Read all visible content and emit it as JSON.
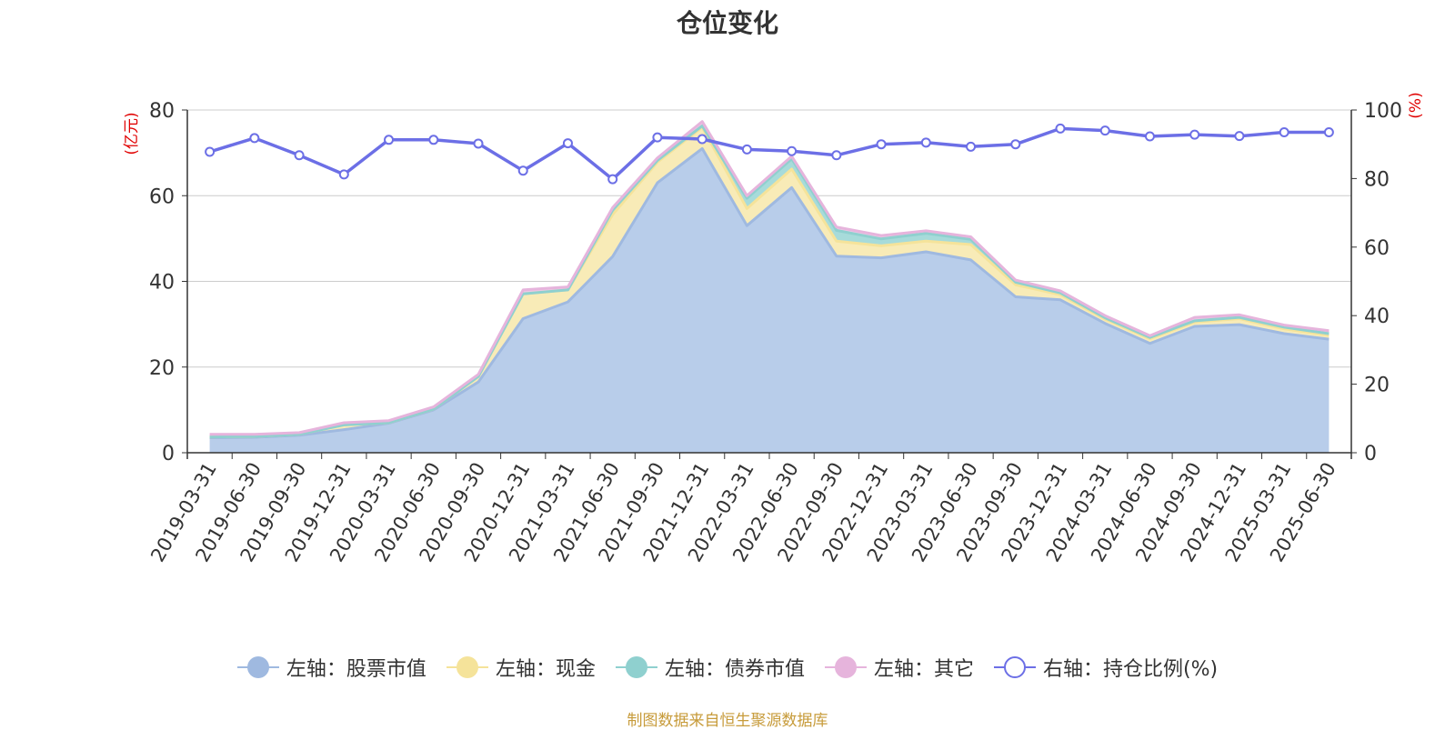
{
  "title": "仓位变化",
  "footer": "制图数据来自恒生聚源数据库",
  "chart_data": {
    "type": "area",
    "title": "仓位变化",
    "left_axis": {
      "label": "(亿元)",
      "ylim": [
        0,
        80
      ],
      "ticks": [
        0,
        20,
        40,
        60,
        80
      ]
    },
    "right_axis": {
      "label": "(%)",
      "ylim": [
        0,
        100
      ],
      "ticks": [
        0,
        20,
        40,
        60,
        80,
        100
      ]
    },
    "grid": true,
    "legend_position": "bottom",
    "categories": [
      "2019-03-31",
      "2019-06-30",
      "2019-09-30",
      "2019-12-31",
      "2020-03-31",
      "2020-06-30",
      "2020-09-30",
      "2020-12-31",
      "2021-03-31",
      "2021-06-30",
      "2021-09-30",
      "2021-12-31",
      "2022-03-31",
      "2022-06-30",
      "2022-09-30",
      "2022-12-31",
      "2023-03-31",
      "2023-06-30",
      "2023-09-30",
      "2023-12-31",
      "2024-03-31",
      "2024-06-30",
      "2024-09-30",
      "2024-12-31",
      "2025-03-31",
      "2025-06-30"
    ],
    "series": [
      {
        "name": "左轴：股票市值",
        "axis": "left",
        "stacked": true,
        "color": "#9fb9e0",
        "fill": "#b8cdea",
        "values": [
          3.5,
          3.6,
          4.1,
          5.4,
          6.9,
          10.0,
          16.5,
          31.3,
          35.2,
          45.8,
          63.0,
          71.0,
          53.0,
          61.9,
          45.9,
          45.5,
          46.9,
          45.0,
          36.4,
          35.7,
          30.2,
          25.5,
          29.5,
          29.9,
          27.8,
          26.5
        ]
      },
      {
        "name": "左轴：现金",
        "axis": "left",
        "stacked": true,
        "color": "#f5e39a",
        "fill": "#f8ebb7",
        "values": [
          0.2,
          0.2,
          0.2,
          1.1,
          0.1,
          0.2,
          1.3,
          5.8,
          2.8,
          9.8,
          4.8,
          5.0,
          4.0,
          4.3,
          3.5,
          2.8,
          2.5,
          3.6,
          2.8,
          1.2,
          1.0,
          1.1,
          1.0,
          1.4,
          1.1,
          0.9
        ]
      },
      {
        "name": "左轴：债券市值",
        "axis": "left",
        "stacked": true,
        "color": "#8fd0cf",
        "fill": "#a7dbda",
        "values": [
          0.0,
          0.0,
          0.0,
          0.0,
          0.0,
          0.0,
          0.0,
          0.0,
          0.0,
          1.0,
          0.4,
          0.3,
          2.4,
          2.4,
          2.5,
          1.6,
          1.8,
          1.2,
          0.6,
          0.4,
          0.3,
          0.3,
          0.3,
          0.3,
          0.4,
          0.4
        ]
      },
      {
        "name": "左轴：其它",
        "axis": "left",
        "stacked": true,
        "color": "#e6b4dc",
        "fill": "#eec9e6",
        "values": [
          0.6,
          0.5,
          0.4,
          0.5,
          0.5,
          0.5,
          0.5,
          0.9,
          0.7,
          0.6,
          0.6,
          1.0,
          0.6,
          0.6,
          0.8,
          0.8,
          0.6,
          0.6,
          0.5,
          0.5,
          0.5,
          0.4,
          0.8,
          0.6,
          0.5,
          0.7
        ]
      },
      {
        "name": "右轴：持仓比例(%)",
        "axis": "right",
        "stacked": false,
        "color": "#6c6fe6",
        "values": [
          87.8,
          91.8,
          86.8,
          81.2,
          91.3,
          91.3,
          90.2,
          82.3,
          90.3,
          79.8,
          92.0,
          91.5,
          88.5,
          88.0,
          86.8,
          90.0,
          90.5,
          89.3,
          90.0,
          94.6,
          94.0,
          92.3,
          92.8,
          92.4,
          93.5,
          93.5
        ]
      }
    ]
  }
}
